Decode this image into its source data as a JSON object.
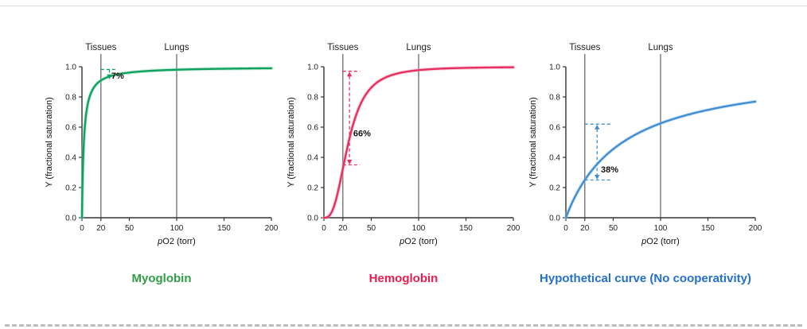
{
  "page": {
    "background": "#ffffff",
    "top_rule_color": "#dcdcdc",
    "bottom_rule_color": "#bdbdbd"
  },
  "chart_data": [
    {
      "type": "line",
      "title": "Myoglobin",
      "title_color": "#2f9e45",
      "curve_color": "#0fa160",
      "halo_color": "#8fd4b4",
      "ylabel": "Y (fractional saturation)",
      "xlabel_italic": "p",
      "xlabel_rest": "O2 (torr)",
      "xlim": [
        0,
        200
      ],
      "ylim": [
        0,
        1
      ],
      "x_ticks": [
        0,
        20,
        50,
        100,
        150,
        200
      ],
      "y_ticks": [
        "0.0",
        "0.2",
        "0.4",
        "0.6",
        "0.8",
        "1.0"
      ],
      "ref_lines": [
        {
          "label": "Tissues",
          "x": 20
        },
        {
          "label": "Lungs",
          "x": 100
        }
      ],
      "model": {
        "kind": "hill",
        "n": 1,
        "p50": 2
      },
      "points": {
        "x": [
          0,
          2,
          5,
          10,
          20,
          50,
          100,
          150,
          200
        ],
        "y": [
          0,
          0.5,
          0.71,
          0.83,
          0.91,
          0.96,
          0.98,
          0.99,
          0.99
        ]
      },
      "annotation": {
        "label": "7%",
        "x": 29,
        "y_low": 0.915,
        "y_high": 0.982,
        "h_from": 20,
        "h_to": 37,
        "h_lines": [
          "high"
        ],
        "arrows": "down",
        "label_x": 31,
        "label_y": 0.92
      }
    },
    {
      "type": "line",
      "title": "Hemoglobin",
      "title_color": "#ea1c4d",
      "curve_color": "#e63061",
      "halo_color": "#f4a0b8",
      "ylabel": "Y (fractional saturation)",
      "xlabel_italic": "p",
      "xlabel_rest": "O2 (torr)",
      "xlim": [
        0,
        200
      ],
      "ylim": [
        0,
        1
      ],
      "x_ticks": [
        0,
        20,
        50,
        100,
        150,
        200
      ],
      "y_ticks": [
        "0.0",
        "0.2",
        "0.4",
        "0.6",
        "0.8",
        "1.0"
      ],
      "ref_lines": [
        {
          "label": "Tissues",
          "x": 20
        },
        {
          "label": "Lungs",
          "x": 100
        }
      ],
      "model": {
        "kind": "hill",
        "n": 2.8,
        "p50": 26
      },
      "points": {
        "x": [
          0,
          10,
          20,
          26,
          30,
          40,
          50,
          75,
          100,
          150,
          200
        ],
        "y": [
          0,
          0.06,
          0.32,
          0.5,
          0.6,
          0.77,
          0.86,
          0.95,
          0.98,
          0.99,
          1.0
        ]
      },
      "annotation": {
        "label": "66%",
        "x": 27,
        "y_low": 0.35,
        "y_high": 0.97,
        "h_from": 20,
        "h_to": 38,
        "h_lines": [
          "high",
          "low"
        ],
        "arrows": "both",
        "label_x": 31,
        "label_y": 0.54
      }
    },
    {
      "type": "line",
      "title": "Hypothetical curve (No cooperativity)",
      "title_color": "#2470cd",
      "curve_color": "#3f8fd2",
      "halo_color": "#a9cdf0",
      "ylabel": "Y (fractional saturation)",
      "xlabel_italic": "p",
      "xlabel_rest": "O2 (torr)",
      "xlim": [
        0,
        200
      ],
      "ylim": [
        0,
        1
      ],
      "x_ticks": [
        0,
        20,
        50,
        100,
        150,
        200
      ],
      "y_ticks": [
        "0.0",
        "0.2",
        "0.4",
        "0.6",
        "0.8",
        "1.0"
      ],
      "ref_lines": [
        {
          "label": "Tissues",
          "x": 20
        },
        {
          "label": "Lungs",
          "x": 100
        }
      ],
      "model": {
        "kind": "hill",
        "n": 1,
        "p50": 60
      },
      "points": {
        "x": [
          0,
          20,
          50,
          100,
          150,
          200
        ],
        "y": [
          0,
          0.25,
          0.45,
          0.62,
          0.71,
          0.77
        ]
      },
      "annotation": {
        "label": "38%",
        "x": 33,
        "y_low": 0.25,
        "y_high": 0.62,
        "h_from": 20,
        "h_to": 47,
        "h_lines": [
          "high",
          "low"
        ],
        "arrows": "both",
        "label_x": 37,
        "label_y": 0.3
      }
    }
  ]
}
